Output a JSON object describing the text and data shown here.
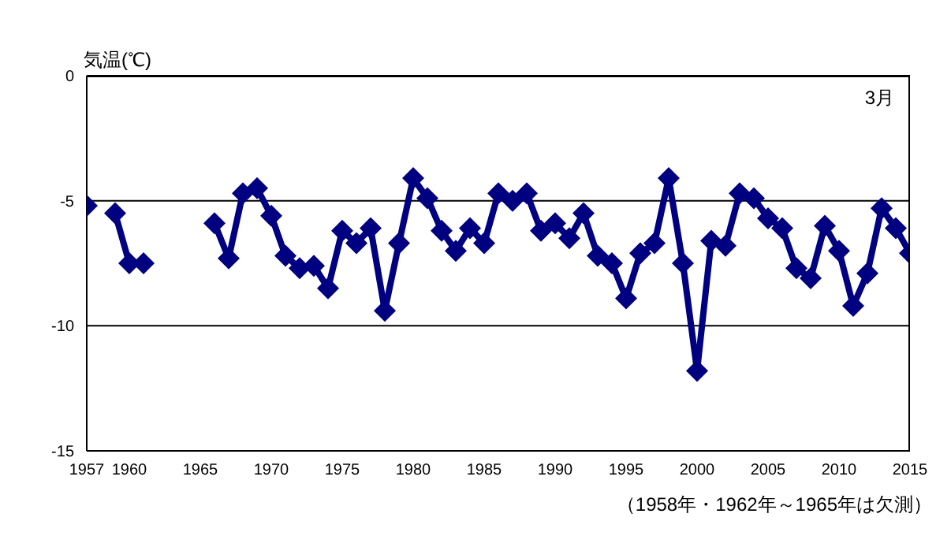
{
  "chart_data": {
    "type": "line",
    "ylabel": "気温(℃)",
    "annotations": [
      "3月",
      "（1958年・1962年～1965年は欠測）"
    ],
    "x": [
      1957,
      1958,
      1959,
      1960,
      1961,
      1962,
      1963,
      1964,
      1965,
      1966,
      1967,
      1968,
      1969,
      1970,
      1971,
      1972,
      1973,
      1974,
      1975,
      1976,
      1977,
      1978,
      1979,
      1980,
      1981,
      1982,
      1983,
      1984,
      1985,
      1986,
      1987,
      1988,
      1989,
      1990,
      1991,
      1992,
      1993,
      1994,
      1995,
      1996,
      1997,
      1998,
      1999,
      2000,
      2001,
      2002,
      2003,
      2004,
      2005,
      2006,
      2007,
      2008,
      2009,
      2010,
      2011,
      2012,
      2013,
      2014,
      2015
    ],
    "series": [
      {
        "color": "#000080",
        "values": [
          -5.2,
          null,
          -5.5,
          -7.5,
          -7.5,
          null,
          null,
          null,
          null,
          -5.9,
          -7.3,
          -4.7,
          -4.5,
          -5.6,
          -7.2,
          -7.7,
          -7.6,
          -8.5,
          -6.2,
          -6.7,
          -6.1,
          -9.4,
          -6.7,
          -4.1,
          -4.9,
          -6.2,
          -7.0,
          -6.1,
          -6.7,
          -4.7,
          -5.0,
          -4.7,
          -6.2,
          -5.9,
          -6.5,
          -5.5,
          -7.2,
          -7.5,
          -8.9,
          -7.1,
          -6.7,
          -4.1,
          -7.5,
          -11.8,
          -6.6,
          -6.8,
          -4.7,
          -4.9,
          -5.7,
          -6.1,
          -7.7,
          -8.1,
          -6.0,
          -7.0,
          -9.2,
          -7.9,
          -5.3,
          -6.1,
          -7.1
        ]
      }
    ],
    "xlim": [
      1957,
      2015
    ],
    "xticks": [
      1957,
      1960,
      1965,
      1970,
      1975,
      1980,
      1985,
      1990,
      1995,
      2000,
      2005,
      2010,
      2015
    ],
    "ylim": [
      -15,
      0
    ],
    "yticks": [
      -15,
      -10,
      -5,
      0
    ],
    "grid": "y",
    "marker": "diamond",
    "line_style": "solid"
  }
}
